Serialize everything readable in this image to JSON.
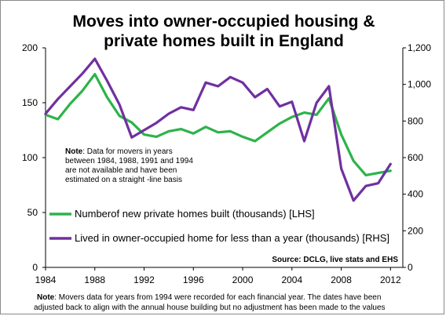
{
  "chart_data": {
    "type": "line",
    "title_lines": [
      "Moves into owner-occupied housing &",
      "private homes built in England"
    ],
    "x": [
      1984,
      1985,
      1986,
      1987,
      1988,
      1989,
      1990,
      1991,
      1992,
      1993,
      1994,
      1995,
      1996,
      1997,
      1998,
      1999,
      2000,
      2001,
      2002,
      2003,
      2004,
      2005,
      2006,
      2007,
      2008,
      2009,
      2010,
      2011,
      2012
    ],
    "xlim": [
      1984,
      2013
    ],
    "x_ticks": [
      "1984",
      "1988",
      "1992",
      "1996",
      "2000",
      "2004",
      "2008",
      "2012"
    ],
    "y_left": {
      "lim": [
        0,
        200
      ],
      "ticks": [
        "0",
        "50",
        "100",
        "150",
        "200"
      ]
    },
    "y_right": {
      "lim": [
        0,
        1200
      ],
      "ticks": [
        "0",
        "200",
        "400",
        "600",
        "800",
        "1,000",
        "1,200"
      ]
    },
    "series": [
      {
        "name": "Numberof new private homes built (thousands) [LHS]",
        "axis": "left",
        "color": "#2DB34A",
        "values": [
          139,
          135,
          149,
          161,
          176,
          155,
          138,
          132,
          121,
          119,
          124,
          126,
          122,
          128,
          123,
          124,
          119,
          115,
          123,
          131,
          137,
          141,
          139,
          154,
          121,
          97,
          84,
          86,
          88
        ]
      },
      {
        "name": "Lived in owner-occupied home  for less than a year (thousands) [RHS]",
        "axis": "right",
        "color": "#7030A0",
        "values": [
          840,
          920,
          990,
          1060,
          1140,
          1020,
          890,
          710,
          750,
          790,
          840,
          875,
          860,
          1010,
          990,
          1040,
          1010,
          930,
          975,
          880,
          905,
          690,
          900,
          990,
          540,
          365,
          445,
          460,
          565
        ]
      }
    ],
    "legend_placement": "center-left",
    "note": {
      "label": "Note",
      "lines": [
        ": Data for movers in years",
        "between 1984, 1988, 1991 and 1994",
        "are not available and  have been",
        "estimated on a straight -line basis"
      ]
    },
    "source": "Source: DCLG, live stats and EHS",
    "footnote": {
      "label": "Note",
      "lines": [
        ": Movers data for years from 1994 were recorded for  each financial year. The dates have been",
        "adjusted back to align with the  annual house building but no adjustment has been made to the values"
      ]
    },
    "grid": false
  }
}
